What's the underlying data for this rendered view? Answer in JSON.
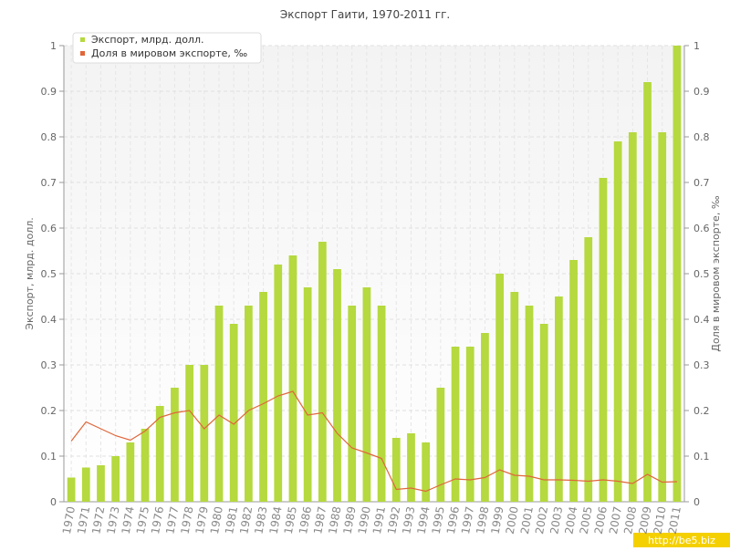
{
  "chart_data": {
    "type": "bar-line",
    "title": "Экспорт Гаити, 1970-2011 гг.",
    "y_label": "Экспорт, млрд. долл.",
    "y2_label": "Доля в мировом экспорте, ‰",
    "watermark": "http://be5.biz",
    "categories": [
      "1970",
      "1971",
      "1972",
      "1973",
      "1974",
      "1975",
      "1976",
      "1977",
      "1978",
      "1979",
      "1980",
      "1981",
      "1982",
      "1983",
      "1984",
      "1985",
      "1986",
      "1987",
      "1988",
      "1989",
      "1990",
      "1991",
      "1992",
      "1993",
      "1994",
      "1995",
      "1996",
      "1997",
      "1998",
      "1999",
      "2000",
      "2001",
      "2002",
      "2003",
      "2004",
      "2005",
      "2006",
      "2007",
      "2008",
      "2009",
      "2010",
      "2011"
    ],
    "series": [
      {
        "name": "Экспорт, млрд. долл.",
        "color": "#b5d93e",
        "kind": "bar",
        "values": [
          0.053,
          0.075,
          0.08,
          0.1,
          0.13,
          0.16,
          0.21,
          0.25,
          0.3,
          0.3,
          0.43,
          0.39,
          0.43,
          0.46,
          0.52,
          0.54,
          0.47,
          0.57,
          0.51,
          0.43,
          0.47,
          0.43,
          0.14,
          0.15,
          0.13,
          0.25,
          0.34,
          0.34,
          0.37,
          0.5,
          0.46,
          0.43,
          0.39,
          0.45,
          0.53,
          0.58,
          0.71,
          0.79,
          0.81,
          0.92,
          0.81,
          1.0
        ]
      },
      {
        "name": "Доля в мировом экспорте, ‰",
        "color": "#e0663a",
        "kind": "line",
        "axis": "y2",
        "values": [
          0.133,
          0.175,
          0.16,
          0.145,
          0.135,
          0.155,
          0.185,
          0.195,
          0.2,
          0.16,
          0.19,
          0.17,
          0.2,
          0.215,
          0.232,
          0.242,
          0.19,
          0.195,
          0.15,
          0.118,
          0.107,
          0.095,
          0.027,
          0.03,
          0.023,
          0.037,
          0.05,
          0.048,
          0.053,
          0.07,
          0.058,
          0.056,
          0.048,
          0.048,
          0.047,
          0.045,
          0.048,
          0.045,
          0.04,
          0.06,
          0.043,
          0.044
        ]
      }
    ],
    "ylim": [
      0,
      1
    ],
    "yticks": [
      0,
      0.1,
      0.2,
      0.3,
      0.4,
      0.5,
      0.6,
      0.7,
      0.8,
      0.9,
      1
    ],
    "y2lim": [
      0,
      1
    ],
    "y2ticks": [
      0,
      0.1,
      0.2,
      0.3,
      0.4,
      0.5,
      0.6,
      0.7,
      0.8,
      0.9,
      1
    ],
    "grid": true,
    "legend": "top-left"
  }
}
